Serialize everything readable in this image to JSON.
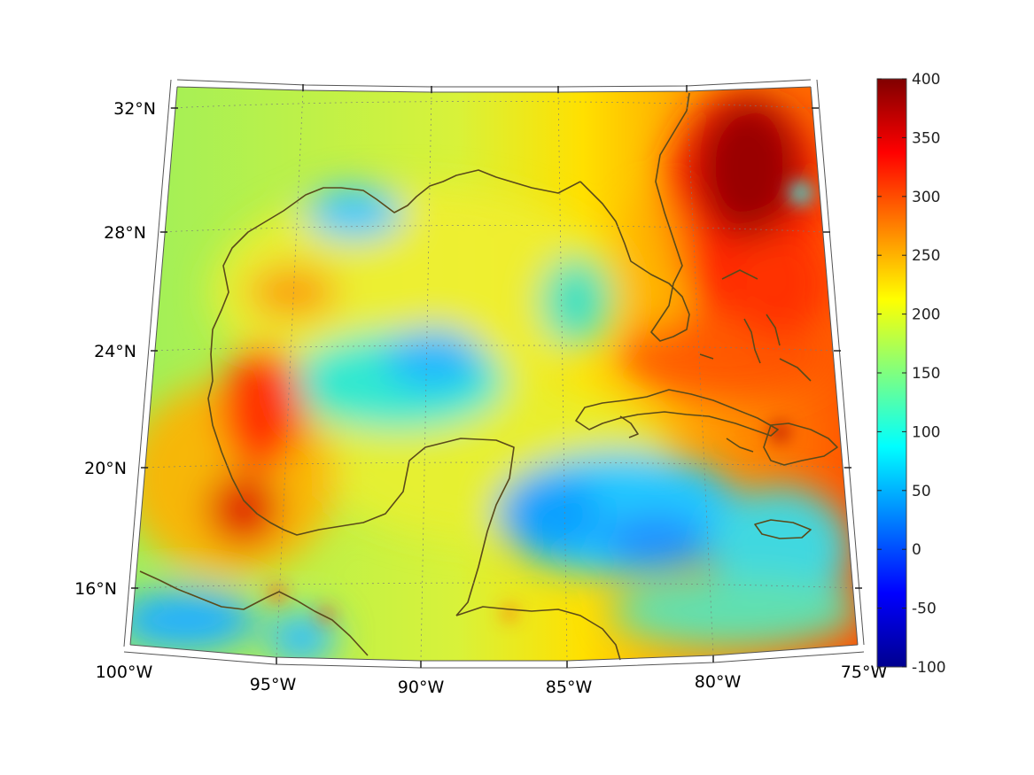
{
  "map": {
    "region": "Gulf of Mexico / Caribbean",
    "longitude_labels": [
      "100°W",
      "95°W",
      "90°W",
      "85°W",
      "80°W",
      "75°W"
    ],
    "latitude_labels": [
      "32°N",
      "28°N",
      "24°N",
      "20°N",
      "16°N"
    ],
    "lon_range": [
      -100,
      -75
    ],
    "lat_range": [
      14,
      33
    ],
    "graticule": "dotted",
    "coastline_color": "#5a4a1a"
  },
  "colorbar": {
    "ticks": [
      "400",
      "350",
      "300",
      "250",
      "200",
      "150",
      "100",
      "50",
      "0",
      "-50",
      "-100"
    ],
    "range": [
      -100,
      400
    ],
    "colormap": "jet",
    "orientation": "vertical",
    "placement": "right"
  }
}
